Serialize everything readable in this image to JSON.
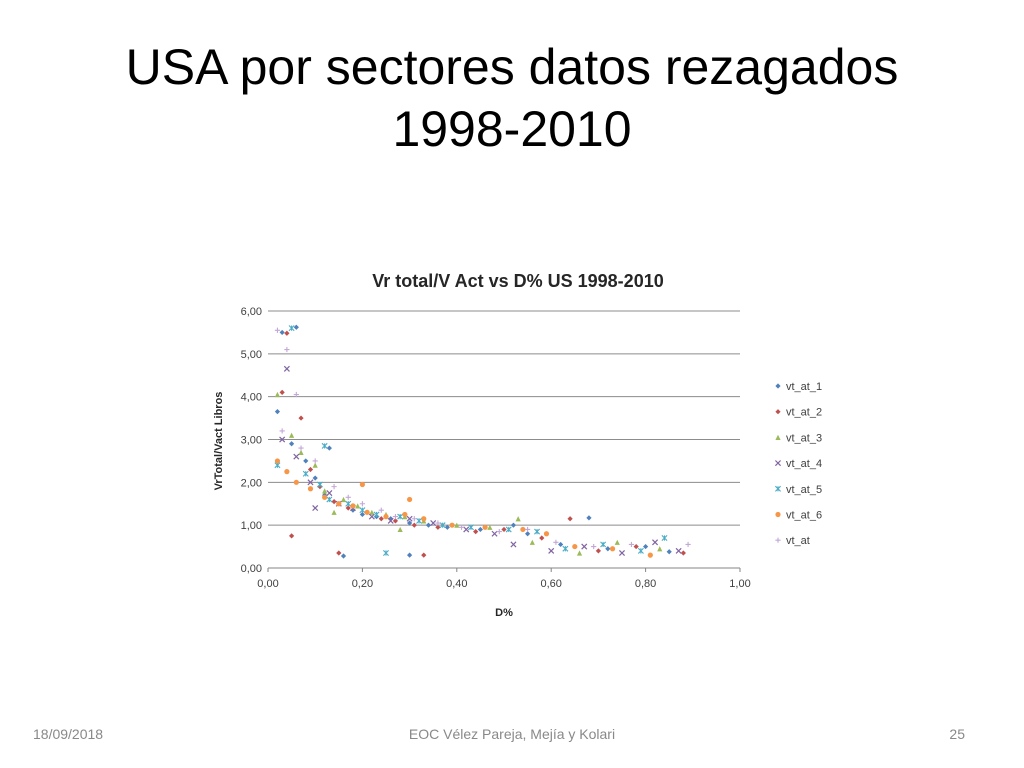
{
  "slide": {
    "title": "USA por sectores  datos rezagados\n1998-2010",
    "footer_left": "18/09/2018",
    "footer_center": "EOC Vélez Pareja, Mejía y Kolari",
    "footer_right": "25"
  },
  "chart_data": {
    "type": "scatter",
    "title": "Vr total/V Act vs D% US 1998-2010",
    "xlabel": "D%",
    "ylabel": "VrTotal/Vact Libros",
    "xlim": [
      0,
      1
    ],
    "ylim": [
      0,
      6
    ],
    "x_ticks": [
      "0,00",
      "0,20",
      "0,40",
      "0,60",
      "0,80",
      "1,00"
    ],
    "y_ticks": [
      "0,00",
      "1,00",
      "2,00",
      "3,00",
      "4,00",
      "5,00",
      "6,00"
    ],
    "grid": "horizontal",
    "legend_position": "right",
    "series": [
      {
        "name": "vt_at_1",
        "color": "#4f81bd",
        "marker": "diamond",
        "points": [
          [
            0.03,
            5.5
          ],
          [
            0.06,
            5.62
          ],
          [
            0.02,
            3.65
          ],
          [
            0.05,
            2.9
          ],
          [
            0.08,
            2.5
          ],
          [
            0.1,
            2.1
          ],
          [
            0.12,
            1.7
          ],
          [
            0.15,
            1.5
          ],
          [
            0.18,
            1.35
          ],
          [
            0.2,
            1.25
          ],
          [
            0.23,
            1.2
          ],
          [
            0.26,
            1.15
          ],
          [
            0.3,
            1.05
          ],
          [
            0.34,
            1.0
          ],
          [
            0.38,
            0.95
          ],
          [
            0.45,
            0.9
          ],
          [
            0.52,
            1.0
          ],
          [
            0.55,
            0.8
          ],
          [
            0.62,
            0.55
          ],
          [
            0.68,
            1.17
          ],
          [
            0.72,
            0.45
          ],
          [
            0.8,
            0.5
          ],
          [
            0.85,
            0.38
          ],
          [
            0.16,
            0.28
          ],
          [
            0.3,
            0.3
          ],
          [
            0.13,
            2.8
          ]
        ]
      },
      {
        "name": "vt_at_2",
        "color": "#c0504d",
        "marker": "diamond",
        "points": [
          [
            0.04,
            5.48
          ],
          [
            0.03,
            4.1
          ],
          [
            0.07,
            3.5
          ],
          [
            0.09,
            2.3
          ],
          [
            0.11,
            1.9
          ],
          [
            0.14,
            1.55
          ],
          [
            0.17,
            1.4
          ],
          [
            0.21,
            1.3
          ],
          [
            0.24,
            1.15
          ],
          [
            0.27,
            1.1
          ],
          [
            0.31,
            1.0
          ],
          [
            0.36,
            0.95
          ],
          [
            0.44,
            0.85
          ],
          [
            0.5,
            0.9
          ],
          [
            0.58,
            0.7
          ],
          [
            0.64,
            1.15
          ],
          [
            0.7,
            0.4
          ],
          [
            0.78,
            0.5
          ],
          [
            0.88,
            0.35
          ],
          [
            0.15,
            0.35
          ],
          [
            0.33,
            0.3
          ],
          [
            0.05,
            0.75
          ]
        ]
      },
      {
        "name": "vt_at_3",
        "color": "#9bbb59",
        "marker": "triangle",
        "points": [
          [
            0.02,
            4.05
          ],
          [
            0.05,
            3.1
          ],
          [
            0.07,
            2.7
          ],
          [
            0.1,
            2.4
          ],
          [
            0.12,
            1.8
          ],
          [
            0.16,
            1.6
          ],
          [
            0.19,
            1.45
          ],
          [
            0.22,
            1.3
          ],
          [
            0.25,
            1.25
          ],
          [
            0.29,
            1.2
          ],
          [
            0.33,
            1.1
          ],
          [
            0.4,
            1.0
          ],
          [
            0.47,
            0.95
          ],
          [
            0.53,
            1.15
          ],
          [
            0.56,
            0.6
          ],
          [
            0.66,
            0.35
          ],
          [
            0.74,
            0.6
          ],
          [
            0.83,
            0.45
          ],
          [
            0.14,
            1.3
          ],
          [
            0.28,
            0.9
          ]
        ]
      },
      {
        "name": "vt_at_4",
        "color": "#8064a2",
        "marker": "cross",
        "points": [
          [
            0.04,
            4.65
          ],
          [
            0.03,
            3.0
          ],
          [
            0.06,
            2.6
          ],
          [
            0.09,
            2.0
          ],
          [
            0.13,
            1.75
          ],
          [
            0.15,
            1.5
          ],
          [
            0.18,
            1.4
          ],
          [
            0.22,
            1.2
          ],
          [
            0.26,
            1.1
          ],
          [
            0.3,
            1.15
          ],
          [
            0.35,
            1.05
          ],
          [
            0.42,
            0.9
          ],
          [
            0.48,
            0.8
          ],
          [
            0.52,
            0.55
          ],
          [
            0.6,
            0.4
          ],
          [
            0.67,
            0.5
          ],
          [
            0.75,
            0.35
          ],
          [
            0.82,
            0.6
          ],
          [
            0.87,
            0.4
          ],
          [
            0.1,
            1.4
          ]
        ]
      },
      {
        "name": "vt_at_5",
        "color": "#4bacc6",
        "marker": "star",
        "points": [
          [
            0.05,
            5.6
          ],
          [
            0.02,
            2.4
          ],
          [
            0.08,
            2.2
          ],
          [
            0.11,
            1.95
          ],
          [
            0.13,
            1.6
          ],
          [
            0.17,
            1.5
          ],
          [
            0.2,
            1.35
          ],
          [
            0.23,
            1.25
          ],
          [
            0.28,
            1.2
          ],
          [
            0.32,
            1.1
          ],
          [
            0.37,
            1.0
          ],
          [
            0.43,
            0.95
          ],
          [
            0.51,
            0.9
          ],
          [
            0.57,
            0.85
          ],
          [
            0.63,
            0.45
          ],
          [
            0.71,
            0.55
          ],
          [
            0.79,
            0.4
          ],
          [
            0.84,
            0.7
          ],
          [
            0.25,
            0.35
          ],
          [
            0.12,
            2.85
          ]
        ]
      },
      {
        "name": "vt_at_6",
        "color": "#f79646",
        "marker": "circle",
        "points": [
          [
            0.02,
            2.5
          ],
          [
            0.04,
            2.25
          ],
          [
            0.06,
            2.0
          ],
          [
            0.09,
            1.85
          ],
          [
            0.12,
            1.65
          ],
          [
            0.15,
            1.5
          ],
          [
            0.18,
            1.45
          ],
          [
            0.21,
            1.3
          ],
          [
            0.25,
            1.2
          ],
          [
            0.29,
            1.25
          ],
          [
            0.33,
            1.15
          ],
          [
            0.39,
            1.0
          ],
          [
            0.46,
            0.95
          ],
          [
            0.54,
            0.9
          ],
          [
            0.59,
            0.8
          ],
          [
            0.65,
            0.5
          ],
          [
            0.73,
            0.45
          ],
          [
            0.81,
            0.3
          ],
          [
            0.2,
            1.95
          ],
          [
            0.3,
            1.6
          ]
        ]
      },
      {
        "name": "vt_at",
        "color": "#c3a7d8",
        "marker": "plus",
        "points": [
          [
            0.02,
            5.55
          ],
          [
            0.04,
            5.1
          ],
          [
            0.06,
            4.05
          ],
          [
            0.03,
            3.2
          ],
          [
            0.07,
            2.8
          ],
          [
            0.1,
            2.5
          ],
          [
            0.14,
            1.9
          ],
          [
            0.17,
            1.65
          ],
          [
            0.2,
            1.5
          ],
          [
            0.24,
            1.35
          ],
          [
            0.27,
            1.2
          ],
          [
            0.31,
            1.15
          ],
          [
            0.36,
            1.05
          ],
          [
            0.41,
            0.95
          ],
          [
            0.49,
            0.85
          ],
          [
            0.55,
            0.9
          ],
          [
            0.61,
            0.6
          ],
          [
            0.69,
            0.5
          ],
          [
            0.77,
            0.55
          ],
          [
            0.89,
            0.55
          ]
        ]
      }
    ]
  }
}
